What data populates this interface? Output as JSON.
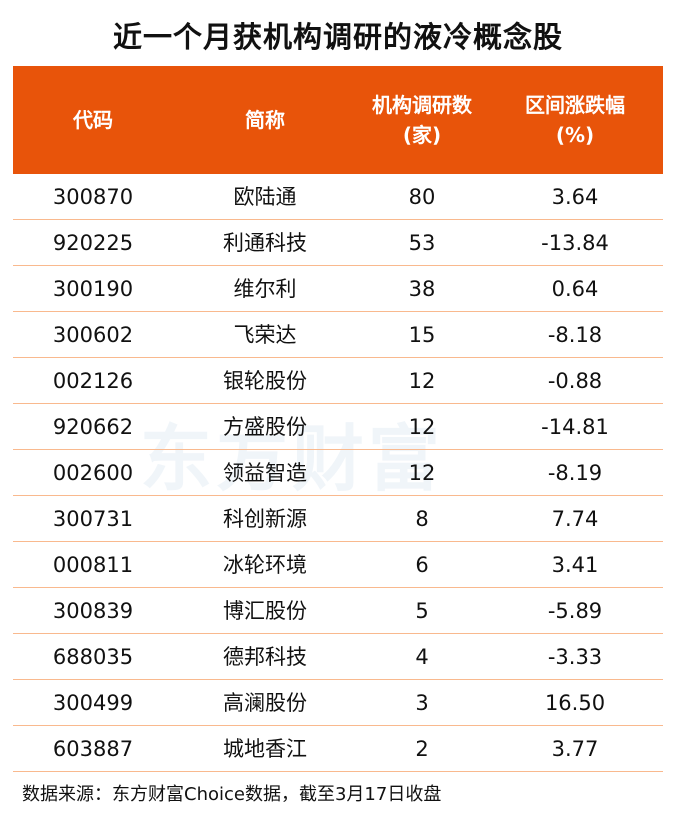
{
  "title": "近一个月获机构调研的液冷概念股",
  "header": {
    "code": "代码",
    "name": "简称",
    "research_count_line1": "机构调研数",
    "research_count_line2": "(家)",
    "change_line1": "区间涨跌幅",
    "change_line2": "(%)"
  },
  "rows": [
    {
      "code": "300870",
      "name": "欧陆通",
      "count": "80",
      "change": "3.64"
    },
    {
      "code": "920225",
      "name": "利通科技",
      "count": "53",
      "change": "-13.84"
    },
    {
      "code": "300190",
      "name": "维尔利",
      "count": "38",
      "change": "0.64"
    },
    {
      "code": "300602",
      "name": "飞荣达",
      "count": "15",
      "change": "-8.18"
    },
    {
      "code": "002126",
      "name": "银轮股份",
      "count": "12",
      "change": "-0.88"
    },
    {
      "code": "920662",
      "name": "方盛股份",
      "count": "12",
      "change": "-14.81"
    },
    {
      "code": "002600",
      "name": "领益智造",
      "count": "12",
      "change": "-8.19"
    },
    {
      "code": "300731",
      "name": "科创新源",
      "count": "8",
      "change": "7.74"
    },
    {
      "code": "000811",
      "name": "冰轮环境",
      "count": "6",
      "change": "3.41"
    },
    {
      "code": "300839",
      "name": "博汇股份",
      "count": "5",
      "change": "-5.89"
    },
    {
      "code": "688035",
      "name": "德邦科技",
      "count": "4",
      "change": "-3.33"
    },
    {
      "code": "300499",
      "name": "高澜股份",
      "count": "3",
      "change": "16.50"
    },
    {
      "code": "603887",
      "name": "城地香江",
      "count": "2",
      "change": "3.77"
    }
  ],
  "footer": "数据来源：东方财富Choice数据，截至3月17日收盘",
  "watermark": "东方财富",
  "colors": {
    "header_bg": "#e8540a",
    "row_border": "#f9b98e"
  }
}
